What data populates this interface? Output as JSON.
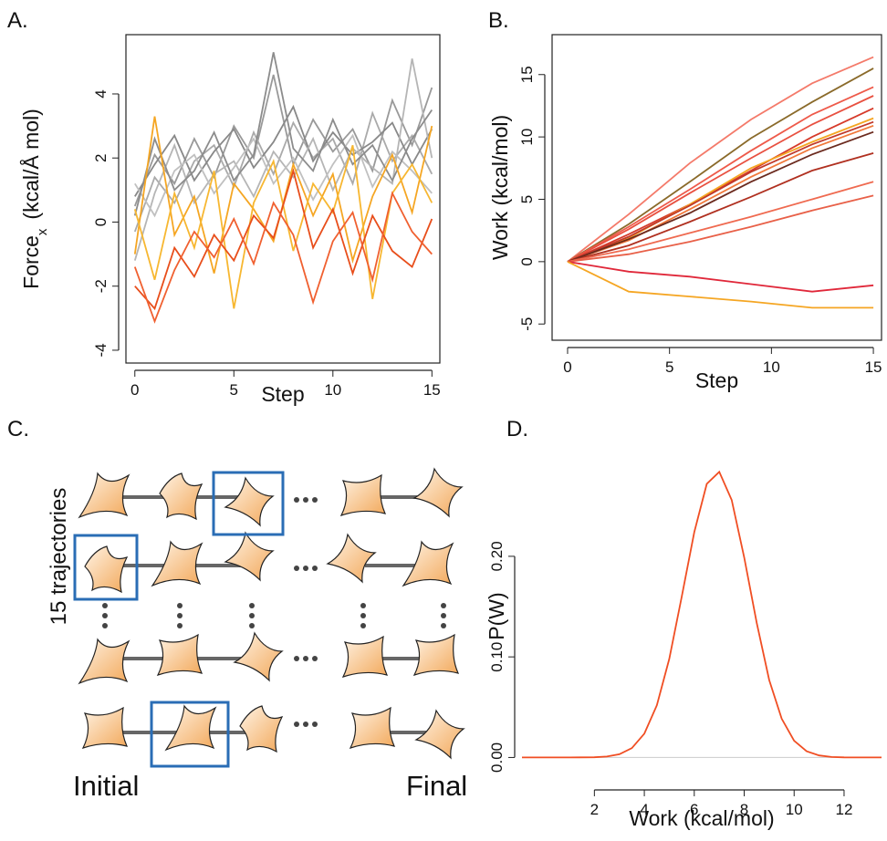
{
  "chart_data": [
    {
      "type": "line",
      "panel": "A.",
      "xlabel": "Step",
      "ylabel": [
        "Force",
        "x",
        "(kcal/Å mol)"
      ],
      "x": [
        0,
        1,
        2,
        3,
        4,
        5,
        6,
        7,
        8,
        9,
        10,
        11,
        12,
        13,
        14,
        15
      ],
      "series": [
        {
          "color": "#999999",
          "values": [
            0.5,
            2.1,
            1.2,
            2.6,
            1.4,
            3.0,
            2.0,
            4.6,
            1.8,
            3.2,
            2.2,
            2.9,
            1.6,
            3.8,
            2.4,
            4.2
          ]
        },
        {
          "color": "#aaaaaa",
          "values": [
            -0.3,
            1.4,
            0.6,
            1.9,
            2.4,
            1.1,
            2.8,
            1.5,
            3.1,
            2.0,
            2.6,
            1.2,
            3.4,
            1.9,
            2.7,
            1.5
          ]
        },
        {
          "color": "#888888",
          "values": [
            0.8,
            1.8,
            2.7,
            1.3,
            2.2,
            2.9,
            1.7,
            2.5,
            3.6,
            1.9,
            2.8,
            2.1,
            2.5,
            3.1,
            1.8,
            2.9
          ]
        },
        {
          "color": "#b5b5b5",
          "values": [
            -1.2,
            0.9,
            2.4,
            0.6,
            1.5,
            1.9,
            0.8,
            2.2,
            1.4,
            2.6,
            1.0,
            2.3,
            1.7,
            1.2,
            5.1,
            2.0
          ]
        },
        {
          "color": "#c0c0c0",
          "values": [
            1.2,
            0.2,
            1.6,
            2.1,
            0.9,
            1.7,
            2.6,
            1.2,
            2.0,
            0.7,
            1.8,
            2.7,
            1.1,
            2.2,
            1.6,
            0.9
          ]
        },
        {
          "color": "#8c8c8c",
          "values": [
            0.2,
            2.6,
            1.0,
            1.6,
            2.8,
            1.3,
            2.1,
            5.3,
            2.3,
            1.6,
            3.2,
            1.8,
            2.4,
            1.3,
            2.6,
            3.5
          ]
        },
        {
          "color": "#f5a623",
          "values": [
            -1.0,
            3.3,
            -0.4,
            0.8,
            -1.6,
            1.2,
            0.4,
            -0.6,
            1.8,
            0.2,
            1.5,
            -1.2,
            0.8,
            2.1,
            0.3,
            3.0
          ]
        },
        {
          "color": "#f7b731",
          "values": [
            0.4,
            -1.8,
            0.9,
            -0.8,
            1.6,
            -2.7,
            0.6,
            1.9,
            -0.9,
            1.2,
            0.3,
            2.4,
            -2.4,
            0.9,
            1.8,
            0.6
          ]
        },
        {
          "color": "#e84e1b",
          "values": [
            -2.0,
            -2.7,
            -0.8,
            -1.7,
            -0.4,
            -1.2,
            0.2,
            -0.5,
            1.6,
            -0.8,
            0.4,
            -1.6,
            0.2,
            -0.9,
            -1.4,
            0.1
          ]
        },
        {
          "color": "#f06030",
          "values": [
            -1.4,
            -3.1,
            -1.5,
            -0.3,
            -1.1,
            0.1,
            -1.3,
            0.6,
            -0.4,
            -2.5,
            -0.6,
            0.3,
            -1.8,
            0.9,
            -0.3,
            -1.0
          ]
        }
      ],
      "xlim": [
        -0.45,
        15.4
      ],
      "ylim": [
        -4.4,
        5.85
      ],
      "xticks": [
        0,
        5,
        10,
        15
      ],
      "yticks": [
        -4,
        -2,
        0,
        2,
        4
      ],
      "box": true
    },
    {
      "type": "line",
      "panel": "B.",
      "xlabel": "Step",
      "ylabel": [
        "Work (kcal/mol)"
      ],
      "x": [
        0,
        3,
        6,
        9,
        12,
        15
      ],
      "series": [
        {
          "color": "#f47a6a",
          "values": [
            0,
            3.8,
            7.9,
            11.4,
            14.3,
            16.4
          ]
        },
        {
          "color": "#8a6a2a",
          "values": [
            0,
            3.0,
            6.4,
            9.9,
            12.8,
            15.5
          ]
        },
        {
          "color": "#ee5a4a",
          "values": [
            0,
            2.8,
            5.8,
            8.9,
            11.8,
            14.0
          ]
        },
        {
          "color": "#e85040",
          "values": [
            0,
            2.6,
            5.5,
            8.3,
            11.0,
            13.3
          ]
        },
        {
          "color": "#d63a2a",
          "values": [
            0,
            2.2,
            4.6,
            7.3,
            10.0,
            12.3
          ]
        },
        {
          "color": "#f5a623",
          "values": [
            0,
            1.9,
            4.6,
            7.5,
            9.6,
            11.5
          ]
        },
        {
          "color": "#c0392b",
          "values": [
            0,
            2.0,
            4.5,
            7.2,
            9.4,
            11.2
          ]
        },
        {
          "color": "#f0783a",
          "values": [
            0,
            1.7,
            4.2,
            6.8,
            9.1,
            10.9
          ]
        },
        {
          "color": "#6b2a1e",
          "values": [
            0,
            1.8,
            3.9,
            6.4,
            8.6,
            10.4
          ]
        },
        {
          "color": "#b03020",
          "values": [
            0,
            1.3,
            3.2,
            5.2,
            7.3,
            8.7
          ]
        },
        {
          "color": "#ef6a50",
          "values": [
            0,
            1.0,
            2.3,
            3.6,
            5.0,
            6.4
          ]
        },
        {
          "color": "#e86048",
          "values": [
            0,
            0.6,
            1.6,
            2.8,
            4.1,
            5.3
          ]
        },
        {
          "color": "#e0283a",
          "values": [
            0,
            -0.8,
            -1.2,
            -1.8,
            -2.4,
            -1.9
          ]
        },
        {
          "color": "#f5a623",
          "values": [
            0,
            -2.4,
            -2.8,
            -3.2,
            -3.7,
            -3.7
          ]
        }
      ],
      "xlim": [
        -0.76,
        15.4
      ],
      "ylim": [
        -6.3,
        18.2
      ],
      "xticks": [
        0,
        5,
        10,
        15
      ],
      "yticks": [
        -5,
        0,
        5,
        10,
        15
      ],
      "box": true
    },
    {
      "type": "line",
      "panel": "D.",
      "xlabel": "Work (kcal/mol)",
      "ylabel": [
        "P(W)"
      ],
      "x": [
        -0.9,
        0,
        1,
        2,
        2.5,
        3,
        3.5,
        4,
        4.5,
        5,
        5.5,
        6,
        6.5,
        7,
        7.5,
        8,
        8.5,
        9,
        9.5,
        10,
        10.5,
        11,
        11.5,
        12,
        13,
        13.5
      ],
      "series": [
        {
          "color": "#f04e23",
          "values": [
            0,
            0,
            0,
            0.0002,
            0.0009,
            0.0032,
            0.0093,
            0.0237,
            0.0519,
            0.098,
            0.16,
            0.224,
            0.272,
            0.284,
            0.256,
            0.199,
            0.134,
            0.077,
            0.0386,
            0.0166,
            0.0062,
            0.002,
            0.0005,
            0.0001,
            0,
            0
          ]
        }
      ],
      "xlim": [
        -0.9,
        13.5
      ],
      "ylim": [
        -0.025,
        0.306
      ],
      "xticks": [
        2,
        4,
        6,
        8,
        10,
        12
      ],
      "yticks": [
        {
          "value": 0,
          "label": "0.00"
        },
        {
          "value": 0.1,
          "label": "0.10"
        },
        {
          "value": 0.2,
          "label": "0.20"
        }
      ],
      "hline": 0,
      "box": false
    }
  ],
  "diagram": {
    "label": "C.",
    "side_label": "15 trajectories",
    "start_label": "Initial",
    "end_label": "Final"
  }
}
